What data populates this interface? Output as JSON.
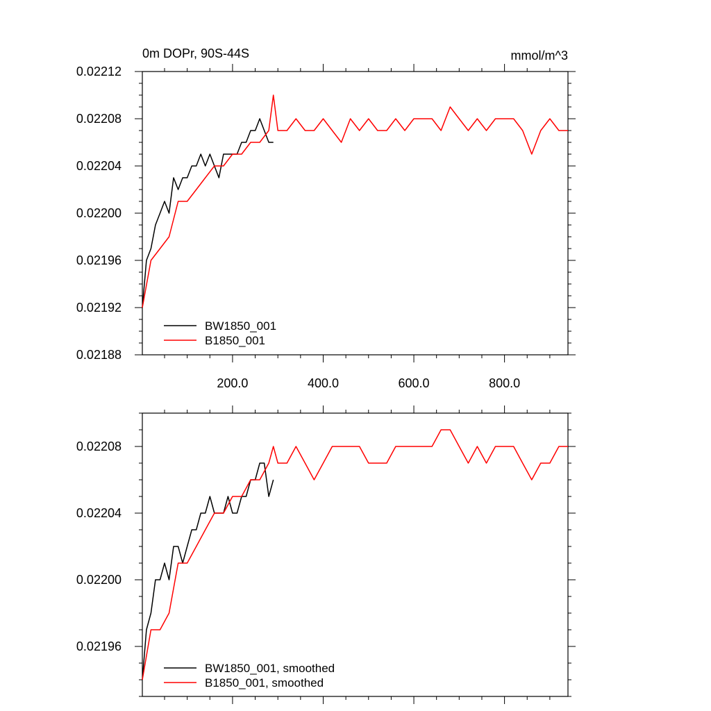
{
  "colors": {
    "series_0": "#000000",
    "series_1": "#ff0000",
    "axes": "#000000",
    "background": "#ffffff"
  },
  "chart_data": [
    {
      "type": "line",
      "title_left": "0m DOPr, 90S-44S",
      "title_right": "mmol/m^3",
      "xlim": [
        1,
        940
      ],
      "ylim": [
        0.02188,
        0.02212
      ],
      "y_ticks": [
        0.02188,
        0.02192,
        0.02196,
        0.022,
        0.02204,
        0.02208,
        0.02212
      ],
      "y_tick_labels": [
        "0.02188",
        "0.02192",
        "0.02196",
        "0.02200",
        "0.02204",
        "0.02208",
        "0.02212"
      ],
      "x_ticks": [
        200,
        400,
        600,
        800
      ],
      "x_tick_labels": [
        "200.0",
        "400.0",
        "600.0",
        "800.0"
      ],
      "legend_placement": "bottom-left",
      "series": [
        {
          "name": "BW1850_001",
          "x": [
            1,
            10,
            20,
            30,
            40,
            50,
            60,
            70,
            80,
            90,
            100,
            110,
            120,
            130,
            140,
            150,
            160,
            170,
            180,
            190,
            200,
            210,
            220,
            230,
            240,
            250,
            260,
            270,
            280,
            290
          ],
          "values": [
            0.02192,
            0.02196,
            0.02197,
            0.02199,
            0.022,
            0.02201,
            0.022,
            0.02203,
            0.02202,
            0.02203,
            0.02203,
            0.02204,
            0.02204,
            0.02205,
            0.02204,
            0.02205,
            0.02204,
            0.02203,
            0.02205,
            0.02205,
            0.02205,
            0.02205,
            0.02206,
            0.02206,
            0.02207,
            0.02207,
            0.02208,
            0.02207,
            0.02206,
            0.02206
          ]
        },
        {
          "name": "B1850_001",
          "x": [
            1,
            20,
            40,
            60,
            80,
            100,
            120,
            140,
            160,
            180,
            200,
            220,
            240,
            260,
            280,
            290,
            300,
            320,
            340,
            360,
            380,
            400,
            420,
            440,
            460,
            480,
            500,
            520,
            540,
            560,
            580,
            600,
            620,
            640,
            660,
            680,
            700,
            720,
            740,
            760,
            780,
            800,
            820,
            840,
            860,
            880,
            900,
            920,
            940
          ],
          "values": [
            0.02192,
            0.02196,
            0.02197,
            0.02198,
            0.02201,
            0.02201,
            0.02202,
            0.02203,
            0.02204,
            0.02204,
            0.02205,
            0.02205,
            0.02206,
            0.02206,
            0.02207,
            0.0221,
            0.02207,
            0.02207,
            0.02208,
            0.02207,
            0.02207,
            0.02208,
            0.02207,
            0.02206,
            0.02208,
            0.02207,
            0.02208,
            0.02207,
            0.02207,
            0.02208,
            0.02207,
            0.02208,
            0.02208,
            0.02208,
            0.02207,
            0.02209,
            0.02208,
            0.02207,
            0.02208,
            0.02207,
            0.02208,
            0.02208,
            0.02208,
            0.02207,
            0.02205,
            0.02207,
            0.02208,
            0.02207,
            0.02207
          ]
        }
      ]
    },
    {
      "type": "line",
      "xlim": [
        1,
        940
      ],
      "ylim": [
        0.02193,
        0.0221
      ],
      "y_ticks": [
        0.02196,
        0.022,
        0.02204,
        0.02208
      ],
      "y_tick_labels": [
        "0.02196",
        "0.02200",
        "0.02204",
        "0.02208"
      ],
      "x_ticks": [
        200,
        400,
        600,
        800
      ],
      "legend_placement": "bottom-left",
      "series": [
        {
          "name": "BW1850_001, smoothed",
          "x": [
            1,
            10,
            20,
            30,
            40,
            50,
            60,
            70,
            80,
            90,
            100,
            110,
            120,
            130,
            140,
            150,
            160,
            170,
            180,
            190,
            200,
            210,
            220,
            230,
            240,
            250,
            260,
            270,
            280,
            290
          ],
          "values": [
            0.02194,
            0.02197,
            0.02198,
            0.022,
            0.022,
            0.02201,
            0.022,
            0.02202,
            0.02202,
            0.02201,
            0.02202,
            0.02203,
            0.02203,
            0.02204,
            0.02204,
            0.02205,
            0.02204,
            0.02204,
            0.02204,
            0.02205,
            0.02204,
            0.02204,
            0.02205,
            0.02205,
            0.02206,
            0.02206,
            0.02207,
            0.02207,
            0.02205,
            0.02206
          ]
        },
        {
          "name": "B1850_001, smoothed",
          "x": [
            1,
            20,
            40,
            60,
            80,
            100,
            120,
            140,
            160,
            180,
            200,
            220,
            240,
            260,
            280,
            290,
            300,
            320,
            340,
            360,
            380,
            400,
            420,
            440,
            460,
            480,
            500,
            520,
            540,
            560,
            580,
            600,
            620,
            640,
            660,
            680,
            700,
            720,
            740,
            760,
            780,
            800,
            820,
            840,
            860,
            880,
            900,
            920,
            940
          ],
          "values": [
            0.02194,
            0.02197,
            0.02197,
            0.02198,
            0.02201,
            0.02201,
            0.02202,
            0.02203,
            0.02204,
            0.02204,
            0.02205,
            0.02205,
            0.02206,
            0.02206,
            0.02207,
            0.02208,
            0.02207,
            0.02207,
            0.02208,
            0.02207,
            0.02206,
            0.02207,
            0.02208,
            0.02208,
            0.02208,
            0.02208,
            0.02207,
            0.02207,
            0.02207,
            0.02208,
            0.02208,
            0.02208,
            0.02208,
            0.02208,
            0.02209,
            0.02209,
            0.02208,
            0.02207,
            0.02208,
            0.02207,
            0.02208,
            0.02208,
            0.02208,
            0.02207,
            0.02206,
            0.02207,
            0.02207,
            0.02208,
            0.02208
          ]
        }
      ]
    }
  ]
}
